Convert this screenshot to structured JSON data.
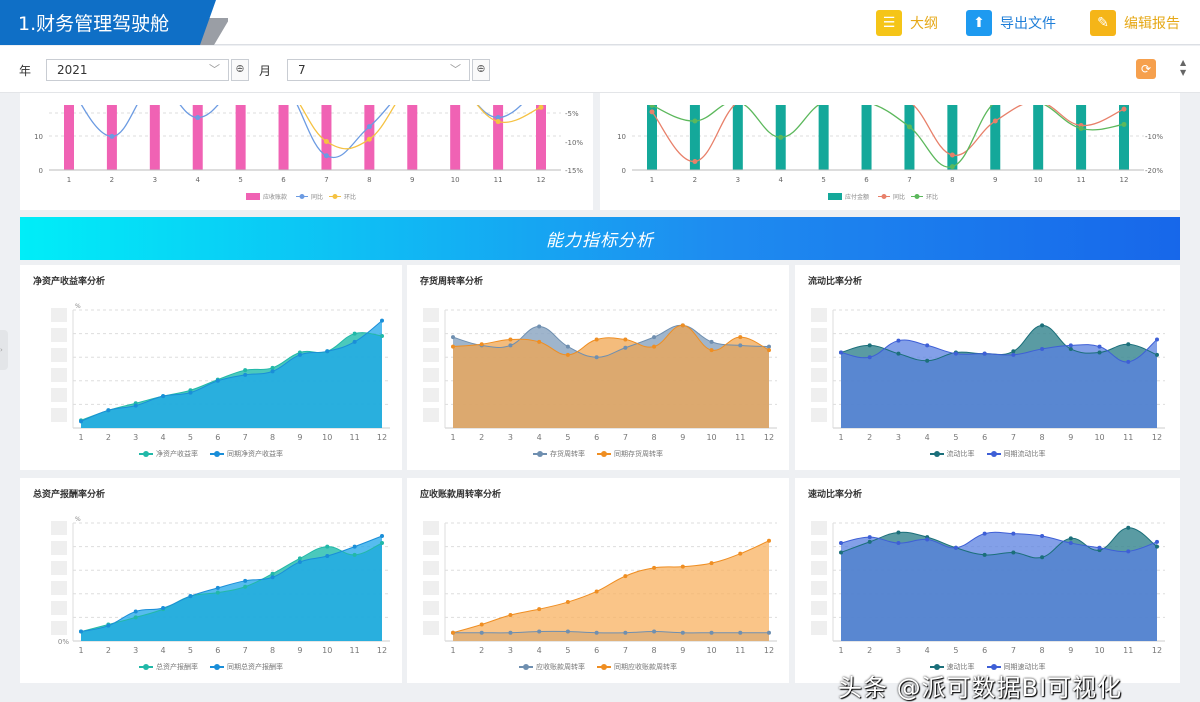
{
  "header": {
    "title": "1.财务管理驾驶舱",
    "tools": [
      {
        "label": "大纲",
        "icon": "outline-icon",
        "color": "#f5c518"
      },
      {
        "label": "导出文件",
        "icon": "export-folder-icon",
        "color": "#1e9af0"
      },
      {
        "label": "编辑报告",
        "icon": "edit-icon",
        "color": "#f5b518"
      }
    ]
  },
  "filters": {
    "year_label": "年",
    "year_value": "2021",
    "month_label": "月",
    "month_value": "7"
  },
  "banner": {
    "title": "能力指标分析"
  },
  "top_charts": [
    {
      "legend": [
        "应收账款",
        "同比",
        "环比"
      ],
      "left_ticks": [
        "0",
        "10"
      ],
      "right_ticks": [
        "-5%",
        "-10%",
        "-15%"
      ],
      "categories": [
        "1",
        "2",
        "3",
        "4",
        "5",
        "6",
        "7",
        "8",
        "9",
        "10",
        "11",
        "12"
      ],
      "bar_color": "#f062b4",
      "yoy_color": "#6c9be2",
      "mom_color": "#f5c242",
      "yoy": [
        0,
        -9.1,
        0,
        -5.8,
        0,
        0,
        -12.5,
        -7.4,
        0,
        0,
        -5.8,
        0
      ],
      "mom": [
        0,
        0,
        0,
        0,
        0,
        0,
        -10,
        -9.6,
        0,
        0,
        -6.5,
        -4
      ]
    },
    {
      "legend": [
        "应付金额",
        "同比",
        "环比"
      ],
      "left_ticks": [
        "0",
        "10"
      ],
      "right_ticks": [
        "-10%",
        "-20%"
      ],
      "categories": [
        "1",
        "2",
        "3",
        "4",
        "5",
        "6",
        "7",
        "8",
        "9",
        "10",
        "11",
        "12"
      ],
      "bar_color": "#14a89a",
      "yoy_color": "#e8806a",
      "mom_color": "#5cb85c",
      "yoy": [
        -2.9,
        -17.5,
        0,
        0,
        0,
        0,
        0,
        -15.6,
        -5.6,
        0,
        -6.9,
        -2.1
      ],
      "mom": [
        -1,
        -5.6,
        0,
        -10.4,
        0,
        0,
        -7.3,
        -19,
        0,
        0,
        -7.8,
        -6.6
      ]
    }
  ],
  "chart_data": [
    {
      "type": "area",
      "title": "净资产收益率分析",
      "unit": "%",
      "categories": [
        "1",
        "2",
        "3",
        "4",
        "5",
        "6",
        "7",
        "8",
        "9",
        "10",
        "11",
        "12"
      ],
      "colors": [
        "#22b8a8",
        "#1a8ed8"
      ],
      "fill": [
        "#2cc0b0",
        "#1ea6ea"
      ],
      "series": [
        {
          "name": "净资产收益率",
          "values": [
            6.5,
            15,
            21,
            27,
            32,
            41,
            49,
            51,
            64,
            65,
            80,
            78
          ]
        },
        {
          "name": "同期净资产收益率",
          "values": [
            5.6,
            15,
            19,
            27,
            30,
            40,
            45,
            48,
            62,
            65,
            73,
            91
          ]
        }
      ]
    },
    {
      "type": "area",
      "title": "存货周转率分析",
      "categories": [
        "1",
        "2",
        "3",
        "4",
        "5",
        "6",
        "7",
        "8",
        "9",
        "10",
        "11",
        "12"
      ],
      "colors": [
        "#6f8fb0",
        "#ef8e22"
      ],
      "fill": [
        "#8ea8c3",
        "#f0a550"
      ],
      "series": [
        {
          "name": "存货周转率",
          "values": [
            77,
            70,
            70,
            86,
            69,
            60,
            68,
            77,
            87,
            73,
            70,
            69
          ]
        },
        {
          "name": "同期存货周转率",
          "values": [
            69,
            71,
            75,
            73,
            62,
            75,
            75,
            69,
            87,
            66,
            77,
            66
          ]
        }
      ]
    },
    {
      "type": "area",
      "title": "流动比率分析",
      "categories": [
        "1",
        "2",
        "3",
        "4",
        "5",
        "6",
        "7",
        "8",
        "9",
        "10",
        "11",
        "12"
      ],
      "colors": [
        "#1b6f7a",
        "#3e5fd6"
      ],
      "fill": [
        "#3d8a93",
        "#5a80e0"
      ],
      "series": [
        {
          "name": "流动比率",
          "values": [
            64,
            70,
            63,
            57,
            64,
            63,
            65,
            87,
            67,
            64,
            71,
            62
          ]
        },
        {
          "name": "同期流动比率",
          "values": [
            64,
            60,
            74,
            70,
            63,
            63,
            62,
            67,
            70,
            69,
            56,
            75
          ]
        }
      ]
    },
    {
      "type": "area",
      "title": "总资产报酬率分析",
      "unit": "%",
      "y_zero_label": "0%",
      "categories": [
        "1",
        "2",
        "3",
        "4",
        "5",
        "6",
        "7",
        "8",
        "9",
        "10",
        "11",
        "12"
      ],
      "colors": [
        "#22b8a8",
        "#1a8ed8"
      ],
      "fill": [
        "#2cc0b0",
        "#1ea6ea"
      ],
      "series": [
        {
          "name": "总资产报酬率",
          "values": [
            8,
            14,
            20,
            27,
            38,
            41,
            46,
            57,
            70,
            80,
            73,
            83
          ]
        },
        {
          "name": "同期总资产报酬率",
          "values": [
            8,
            13,
            25,
            28,
            38,
            45,
            51,
            54,
            67,
            72,
            80,
            89
          ]
        }
      ]
    },
    {
      "type": "area",
      "title": "应收账款周转率分析",
      "categories": [
        "1",
        "2",
        "3",
        "4",
        "5",
        "6",
        "7",
        "8",
        "9",
        "10",
        "11",
        "12"
      ],
      "colors": [
        "#6f8fb0",
        "#ef8e22"
      ],
      "fill": [
        "#8ea8c3",
        "#f8b260"
      ],
      "series": [
        {
          "name": "应收账款周转率",
          "values": [
            7,
            7,
            7,
            8,
            8,
            7,
            7,
            8,
            7,
            7,
            7,
            7
          ]
        },
        {
          "name": "同期应收账款周转率",
          "values": [
            7,
            14,
            22,
            27,
            33,
            42,
            55,
            62,
            63,
            66,
            74,
            85
          ]
        }
      ]
    },
    {
      "type": "area",
      "title": "速动比率分析",
      "categories": [
        "1",
        "2",
        "3",
        "4",
        "5",
        "6",
        "7",
        "8",
        "9",
        "10",
        "11",
        "12"
      ],
      "colors": [
        "#1b6f7a",
        "#3e5fd6"
      ],
      "fill": [
        "#3d8a93",
        "#5a80e0"
      ],
      "series": [
        {
          "name": "速动比率",
          "values": [
            75,
            84,
            92,
            88,
            79,
            73,
            75,
            71,
            87,
            77,
            96,
            80
          ]
        },
        {
          "name": "同期速动比率",
          "values": [
            83,
            88,
            83,
            86,
            79,
            91,
            91,
            89,
            83,
            79,
            76,
            84
          ]
        }
      ]
    }
  ],
  "watermark": "头条 @派可数据BI可视化"
}
